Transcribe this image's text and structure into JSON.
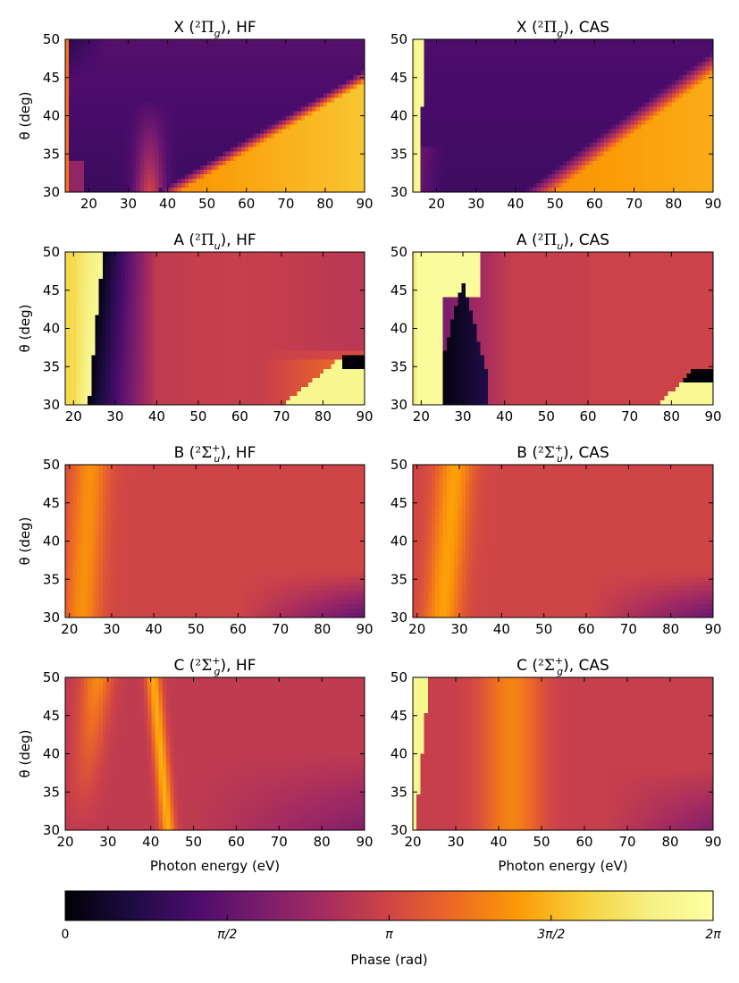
{
  "chart_data": {
    "type": "heatmap",
    "xlabel": "Photon energy (eV)",
    "ylabel": "θ (deg)",
    "ylim": [
      30,
      50
    ],
    "yticks": [
      30,
      35,
      40,
      45,
      50
    ],
    "colormap": "inferno",
    "colorbar": {
      "label": "Phase (rad)",
      "range": [
        0,
        6.2832
      ],
      "ticks": [
        {
          "value": 0,
          "label": "0"
        },
        {
          "value": 1.5708,
          "label": "π/2"
        },
        {
          "value": 3.1416,
          "label": "π"
        },
        {
          "value": 4.7124,
          "label": "3π/2"
        },
        {
          "value": 6.2832,
          "label": "2π"
        }
      ]
    },
    "panels": [
      {
        "id": "XHF",
        "title": {
          "pre": "X (",
          "sym": "²Π",
          "sub": "g",
          "post": "), HF"
        },
        "xlim": [
          14,
          90
        ],
        "xticks": [
          20,
          30,
          40,
          50,
          60,
          70,
          80,
          90
        ],
        "ylabel_shown": true,
        "xlabel_shown": false
      },
      {
        "id": "XCAS",
        "title": {
          "pre": "X (",
          "sym": "²Π",
          "sub": "g",
          "post": "), CAS"
        },
        "xlim": [
          14,
          90
        ],
        "xticks": [
          20,
          30,
          40,
          50,
          60,
          70,
          80,
          90
        ],
        "ylabel_shown": false,
        "xlabel_shown": false
      },
      {
        "id": "AHF",
        "title": {
          "pre": "A (",
          "sym": "²Π",
          "sub": "u",
          "post": "), HF"
        },
        "xlim": [
          18,
          90
        ],
        "xticks": [
          20,
          30,
          40,
          50,
          60,
          70,
          80,
          90
        ],
        "ylabel_shown": true,
        "xlabel_shown": false
      },
      {
        "id": "ACAS",
        "title": {
          "pre": "A (",
          "sym": "²Π",
          "sub": "u",
          "post": "), CAS"
        },
        "xlim": [
          18,
          90
        ],
        "xticks": [
          20,
          30,
          40,
          50,
          60,
          70,
          80,
          90
        ],
        "ylabel_shown": false,
        "xlabel_shown": false
      },
      {
        "id": "BHF",
        "title": {
          "pre": "B (",
          "sym": "²Σ",
          "sup": "+",
          "sub": "u",
          "post": "), HF"
        },
        "xlim": [
          19,
          90
        ],
        "xticks": [
          20,
          30,
          40,
          50,
          60,
          70,
          80,
          90
        ],
        "ylabel_shown": true,
        "xlabel_shown": false
      },
      {
        "id": "BCAS",
        "title": {
          "pre": "B (",
          "sym": "²Σ",
          "sup": "+",
          "sub": "u",
          "post": "), CAS"
        },
        "xlim": [
          19,
          90
        ],
        "xticks": [
          20,
          30,
          40,
          50,
          60,
          70,
          80,
          90
        ],
        "ylabel_shown": false,
        "xlabel_shown": false
      },
      {
        "id": "CHF",
        "title": {
          "pre": "C (",
          "sym": "²Σ",
          "sup": "+",
          "sub": "g",
          "post": "), HF"
        },
        "xlim": [
          20,
          90
        ],
        "xticks": [
          20,
          30,
          40,
          50,
          60,
          70,
          80,
          90
        ],
        "ylabel_shown": true,
        "xlabel_shown": true
      },
      {
        "id": "CCAS",
        "title": {
          "pre": "C (",
          "sym": "²Σ",
          "sup": "+",
          "sub": "g",
          "post": "), CAS"
        },
        "xlim": [
          20,
          90
        ],
        "xticks": [
          20,
          30,
          40,
          50,
          60,
          70,
          80,
          90
        ],
        "ylabel_shown": false,
        "xlabel_shown": true
      }
    ]
  }
}
